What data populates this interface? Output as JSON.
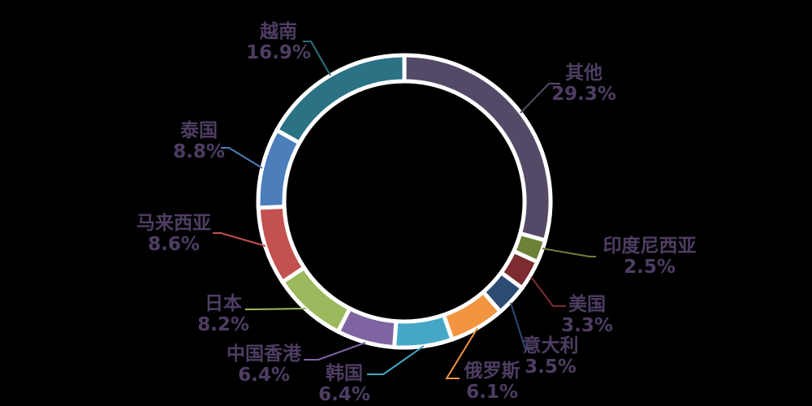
{
  "chart_data": {
    "type": "pie",
    "subtype": "donut",
    "title": "",
    "start_angle": "12-oclock",
    "direction": "clockwise",
    "grid": false,
    "legend": "none (direct callout labels)",
    "background": "#000000",
    "label_text_color": "#4E3D63",
    "ring_border_color": "#FFFFFF",
    "segments": [
      {
        "label": "其他",
        "value": 29.3,
        "display": "29.3%",
        "color": "#544A68"
      },
      {
        "label": "印度尼西亚",
        "value": 2.5,
        "display": "2.5%",
        "color": "#6E8138"
      },
      {
        "label": "美国",
        "value": 3.3,
        "display": "3.3%",
        "color": "#7C2C31"
      },
      {
        "label": "意大利",
        "value": 3.5,
        "display": "3.5%",
        "color": "#2C4B72"
      },
      {
        "label": "俄罗斯",
        "value": 6.1,
        "display": "6.1%",
        "color": "#F19541"
      },
      {
        "label": "韩国",
        "value": 6.4,
        "display": "6.4%",
        "color": "#45A7C5"
      },
      {
        "label": "中国香港",
        "value": 6.4,
        "display": "6.4%",
        "color": "#7E64A0"
      },
      {
        "label": "日本",
        "value": 8.2,
        "display": "8.2%",
        "color": "#9CBA5D"
      },
      {
        "label": "马来西亚",
        "value": 8.6,
        "display": "8.6%",
        "color": "#C25150"
      },
      {
        "label": "泰国",
        "value": 8.8,
        "display": "8.8%",
        "color": "#4B7EBA"
      },
      {
        "label": "越南",
        "value": 16.9,
        "display": "16.9%",
        "color": "#2B7285"
      }
    ]
  }
}
